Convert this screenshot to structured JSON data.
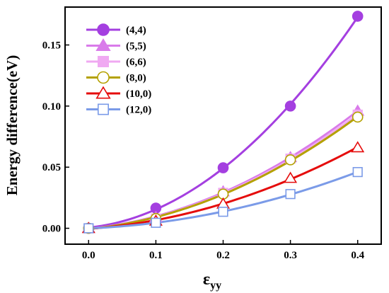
{
  "chart_data": {
    "type": "line",
    "xlabel": "ε",
    "xlabel_sub": "yy",
    "ylabel": "Energy difference(eV)",
    "xlim": [
      -0.035,
      0.435
    ],
    "ylim": [
      -0.013,
      0.181
    ],
    "xticks": [
      0.0,
      0.1,
      0.2,
      0.3,
      0.4
    ],
    "yticks": [
      0.0,
      0.05,
      0.1,
      0.15
    ],
    "xtick_labels": [
      "0.0",
      "0.1",
      "0.2",
      "0.3",
      "0.4"
    ],
    "ytick_labels": [
      "0.00",
      "0.05",
      "0.10",
      "0.15"
    ],
    "grid": false,
    "legend_position": "top-left",
    "x": [
      0.0,
      0.1,
      0.2,
      0.3,
      0.4
    ],
    "series": [
      {
        "name": "(4,4)",
        "marker": "circle",
        "filled": true,
        "color": "#a43fe0",
        "values": [
          0.0,
          0.0165,
          0.0495,
          0.1,
          0.1735
        ]
      },
      {
        "name": "(5,5)",
        "marker": "triangle",
        "filled": true,
        "color": "#d97bea",
        "values": [
          0.0,
          0.009,
          0.03,
          0.058,
          0.096
        ]
      },
      {
        "name": "(6,6)",
        "marker": "square",
        "filled": true,
        "color": "#f0a9f2",
        "values": [
          0.0,
          0.008,
          0.029,
          0.057,
          0.093
        ]
      },
      {
        "name": "(8,0)",
        "marker": "circle",
        "filled": false,
        "color": "#b4a100",
        "values": [
          0.0,
          0.008,
          0.028,
          0.056,
          0.091
        ]
      },
      {
        "name": "(10,0)",
        "marker": "triangle",
        "filled": false,
        "color": "#e50c0c",
        "values": [
          0.0,
          0.006,
          0.02,
          0.041,
          0.066
        ]
      },
      {
        "name": "(12,0)",
        "marker": "square",
        "filled": false,
        "color": "#7b9be8",
        "values": [
          0.0,
          0.0045,
          0.0135,
          0.028,
          0.046
        ]
      }
    ]
  }
}
